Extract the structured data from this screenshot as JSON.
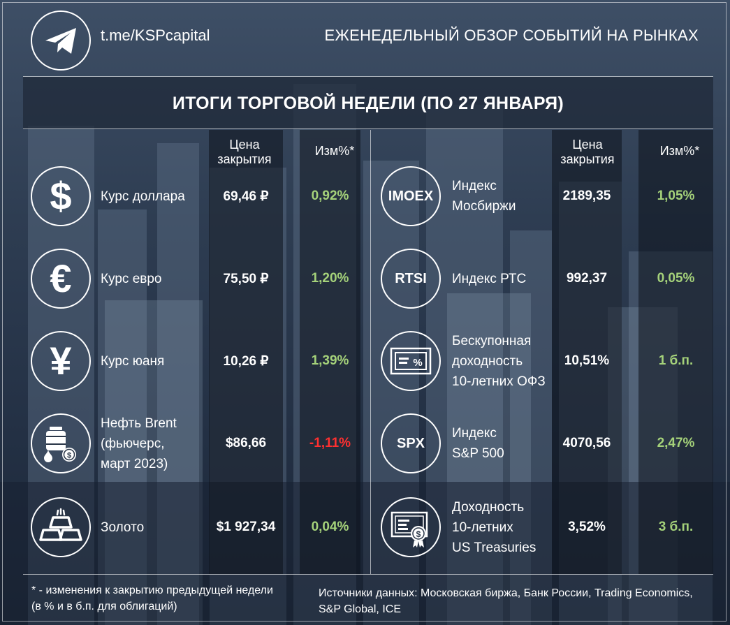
{
  "header": {
    "link": "t.me/KSPcapital",
    "title": "ЕЖЕНЕДЕЛЬНЫЙ ОБЗОР СОБЫТИЙ НА РЫНКАХ"
  },
  "banner": "ИТОГИ ТОРГОВОЙ НЕДЕЛИ (ПО 27 ЯНВАРЯ)",
  "columns": {
    "price": [
      "Цена",
      "закрытия"
    ],
    "change": "Изм%*"
  },
  "colors": {
    "positive": "#a5d27a",
    "negative": "#ff3030"
  },
  "left": [
    {
      "icon": "dollar-icon",
      "symbol": "$",
      "label": [
        "Курс доллара"
      ],
      "price": "69,46 ₽",
      "change": "0,92%",
      "dir": "up"
    },
    {
      "icon": "euro-icon",
      "symbol": "€",
      "label": [
        "Курс евро"
      ],
      "price": "75,50 ₽",
      "change": "1,20%",
      "dir": "up"
    },
    {
      "icon": "yuan-icon",
      "symbol": "¥",
      "label": [
        "Курс юаня"
      ],
      "price": "10,26 ₽",
      "change": "1,39%",
      "dir": "up"
    },
    {
      "icon": "oil-barrel-icon",
      "symbol": "",
      "label": [
        "Нефть Brent",
        "(фьючерс,",
        "март 2023)"
      ],
      "price": "$86,66",
      "change": "-1,11%",
      "dir": "down"
    },
    {
      "icon": "gold-bars-icon",
      "symbol": "",
      "label": [
        "Золото"
      ],
      "price": "$1 927,34",
      "change": "0,04%",
      "dir": "up"
    }
  ],
  "right": [
    {
      "icon": "imoex-icon",
      "symbol": "IMOEX",
      "label": [
        "Индекс",
        "Мосбиржи"
      ],
      "price": "2189,35",
      "change": "1,05%",
      "dir": "up"
    },
    {
      "icon": "rtsi-icon",
      "symbol": "RTSI",
      "label": [
        "Индекс РТС"
      ],
      "price": "992,37",
      "change": "0,05%",
      "dir": "up"
    },
    {
      "icon": "bond-icon",
      "symbol": "",
      "label": [
        "Бескупонная",
        "доходность",
        "10-летних ОФЗ"
      ],
      "price": "10,51%",
      "change": "1 б.п.",
      "dir": "up"
    },
    {
      "icon": "spx-icon",
      "symbol": "SPX",
      "label": [
        "Индекс",
        "S&P 500"
      ],
      "price": "4070,56",
      "change": "2,47%",
      "dir": "up"
    },
    {
      "icon": "treasury-certificate-icon",
      "symbol": "",
      "label": [
        "Доходность",
        "10-летних",
        "US Treasuries"
      ],
      "price": "3,52%",
      "change": "3 б.п.",
      "dir": "up"
    }
  ],
  "footer": {
    "note": [
      "* - изменения к закрытию предыдущей недели",
      "(в % и в б.п. для облигаций)"
    ],
    "sources": [
      "Источники данных: Московская биржа, Банк России, Trading Economics,",
      "S&P Global, ICE"
    ]
  }
}
